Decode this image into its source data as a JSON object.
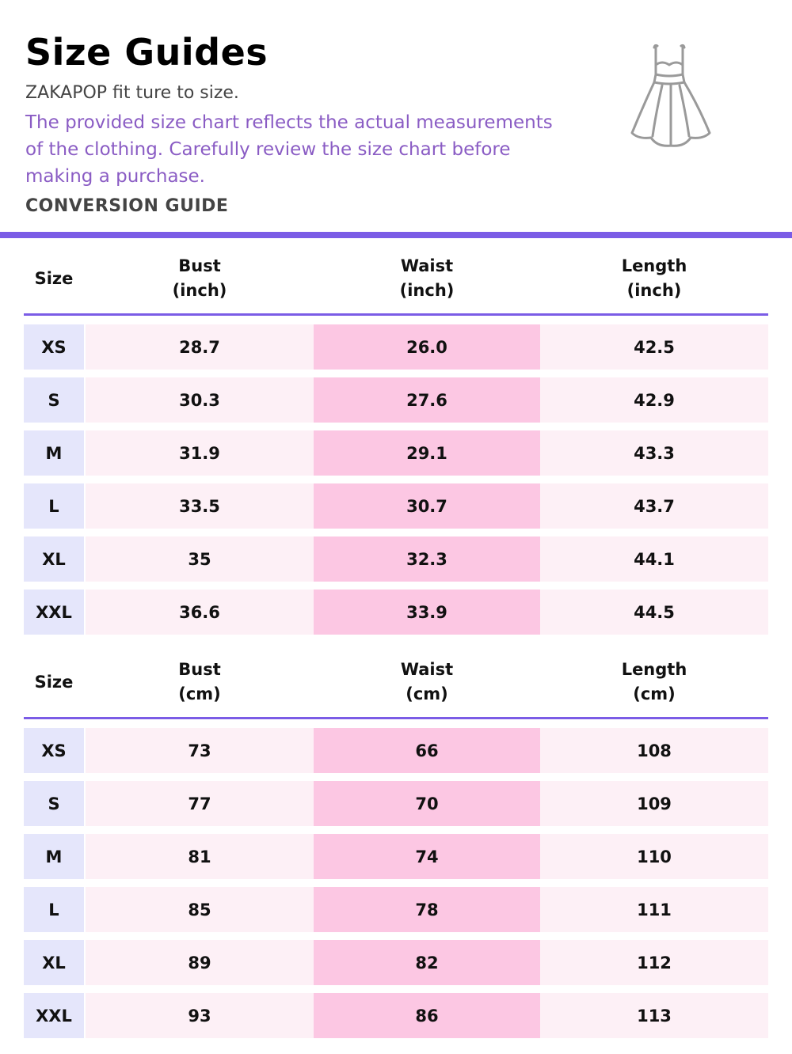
{
  "header": {
    "title": "Size Guides",
    "brand_line": "ZAKAPOP fit ture to size.",
    "description": "The provided size chart reflects the actual measurements of the clothing. Carefully review the size chart before making a purchase.",
    "conversion_label": "CONVERSION GUIDE",
    "icon": "dress-icon"
  },
  "colors": {
    "accent": "#7b5ce6",
    "size_cell": "#e5e6fb",
    "light_cell": "#fdf0f6",
    "waist_cell": "#fcc7e3",
    "description_text": "#8a5cc4"
  },
  "tables": [
    {
      "headers": {
        "size": "Size",
        "bust": "Bust",
        "bust_unit": "(inch)",
        "waist": "Waist",
        "waist_unit": "(inch)",
        "length": "Length",
        "length_unit": "(inch)"
      },
      "rows": [
        {
          "size": "XS",
          "bust": "28.7",
          "waist": "26.0",
          "length": "42.5"
        },
        {
          "size": "S",
          "bust": "30.3",
          "waist": "27.6",
          "length": "42.9"
        },
        {
          "size": "M",
          "bust": "31.9",
          "waist": "29.1",
          "length": "43.3"
        },
        {
          "size": "L",
          "bust": "33.5",
          "waist": "30.7",
          "length": "43.7"
        },
        {
          "size": "XL",
          "bust": "35",
          "waist": "32.3",
          "length": "44.1"
        },
        {
          "size": "XXL",
          "bust": "36.6",
          "waist": "33.9",
          "length": "44.5"
        }
      ]
    },
    {
      "headers": {
        "size": "Size",
        "bust": "Bust",
        "bust_unit": "(cm)",
        "waist": "Waist",
        "waist_unit": "(cm)",
        "length": "Length",
        "length_unit": "(cm)"
      },
      "rows": [
        {
          "size": "XS",
          "bust": "73",
          "waist": "66",
          "length": "108"
        },
        {
          "size": "S",
          "bust": "77",
          "waist": "70",
          "length": "109"
        },
        {
          "size": "M",
          "bust": "81",
          "waist": "74",
          "length": "110"
        },
        {
          "size": "L",
          "bust": "85",
          "waist": "78",
          "length": "111"
        },
        {
          "size": "XL",
          "bust": "89",
          "waist": "82",
          "length": "112"
        },
        {
          "size": "XXL",
          "bust": "93",
          "waist": "86",
          "length": "113"
        }
      ]
    }
  ]
}
